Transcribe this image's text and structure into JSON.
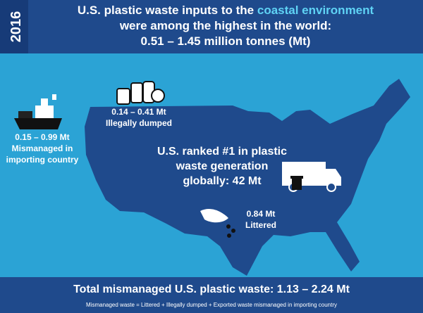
{
  "year": "2016",
  "title": {
    "line1": [
      "U.S. plastic waste inputs to the ",
      "coastal environment"
    ],
    "line2": "were among the highest in the world:",
    "line3": "0.51 – 1.45 million tonnes (Mt)"
  },
  "callouts": {
    "importing": {
      "value": "0.15 – 0.99 Mt",
      "label": [
        "Mismanaged in",
        "importing country"
      ]
    },
    "dumped": {
      "value": "0.14 – 0.41 Mt",
      "label": "Illegally dumped"
    },
    "generation": {
      "label": [
        "U.S. ranked #1 in plastic",
        "waste generation",
        "globally: 42 Mt"
      ]
    },
    "littered": {
      "value": "0.84 Mt",
      "label": "Littered"
    }
  },
  "footer": {
    "total": "Total mismanaged U.S. plastic waste: 1.13 – 2.24 Mt",
    "note": "Mismanaged waste = Littered + Illegally dumped + Exported waste mismanaged in importing country"
  }
}
